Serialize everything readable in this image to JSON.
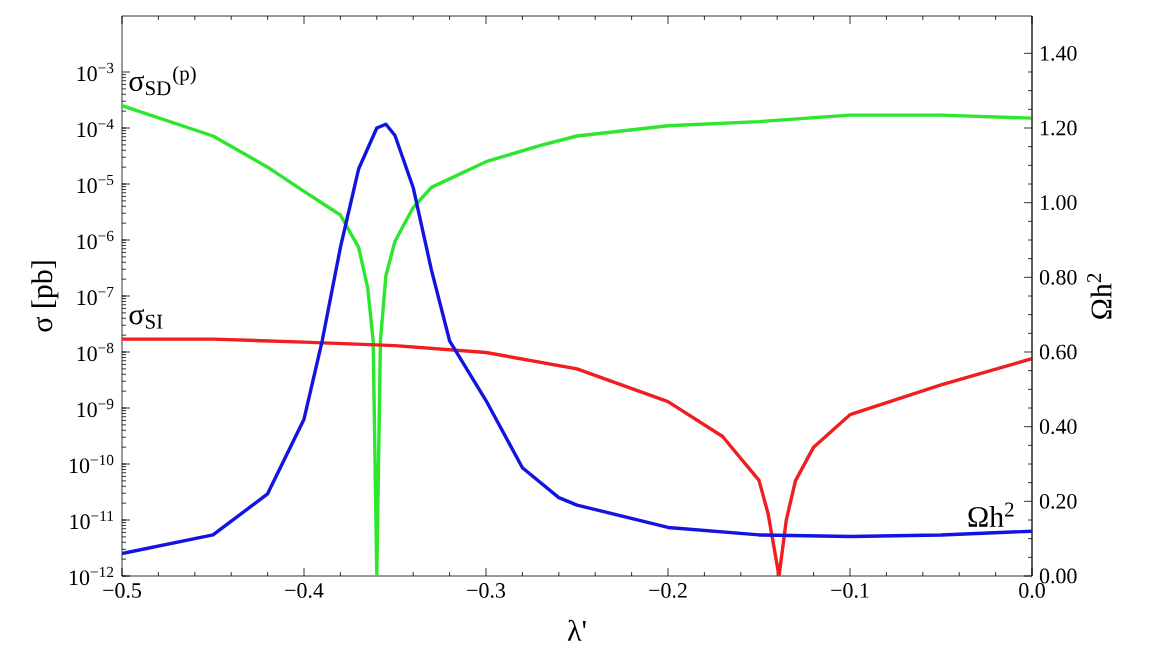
{
  "chart_data": {
    "type": "line",
    "xlabel": "λ'",
    "ylabel": "σ [pb]",
    "y2label": "Ωh$^{2}$",
    "log": "y",
    "xlim": [
      -0.5,
      0
    ],
    "xticks": [
      {
        "value": -0.5,
        "label": "−0.5"
      },
      {
        "value": -0.4,
        "label": "−0.4"
      },
      {
        "value": -0.3,
        "label": "−0.3"
      },
      {
        "value": -0.2,
        "label": "−0.2"
      },
      {
        "value": -0.1,
        "label": "−0.1"
      },
      {
        "value": 0,
        "label": "0.0"
      }
    ],
    "ylim": [
      1e-12,
      0.01
    ],
    "yticks": [
      {
        "value": 1e-12,
        "label": "10$^{−12}$"
      },
      {
        "value": 1e-11,
        "label": "10$^{−11}$"
      },
      {
        "value": 1e-10,
        "label": "10$^{−10}$"
      },
      {
        "value": 1e-09,
        "label": "10$^{−9}$"
      },
      {
        "value": 1e-08,
        "label": "10$^{−8}$"
      },
      {
        "value": 1e-07,
        "label": "10$^{−7}$"
      },
      {
        "value": 1e-06,
        "label": "10$^{−6}$"
      },
      {
        "value": 1e-05,
        "label": "10$^{−5}$"
      },
      {
        "value": 0.0001,
        "label": "10$^{−4}$"
      },
      {
        "value": 0.001,
        "label": "10$^{−3}$"
      }
    ],
    "y2lim": [
      0,
      1.5
    ],
    "y2ticks": [
      {
        "value": 0,
        "label": "0.00"
      },
      {
        "value": 0.2,
        "label": "0.20"
      },
      {
        "value": 0.4,
        "label": "0.40"
      },
      {
        "value": 0.6,
        "label": "0.60"
      },
      {
        "value": 0.8,
        "label": "0.80"
      },
      {
        "value": 1.0,
        "label": "1.00"
      },
      {
        "value": 1.2,
        "label": "1.20"
      },
      {
        "value": 1.4,
        "label": "1.40"
      }
    ],
    "series": [
      {
        "name": "σ$_{SD}$$^{(p)}$",
        "color": "#2ee62e",
        "x": [
          -0.5,
          -0.45,
          -0.42,
          -0.4,
          -0.38,
          -0.37,
          -0.365,
          -0.362,
          -0.36,
          -0.358,
          -0.355,
          -0.35,
          -0.34,
          -0.33,
          -0.3,
          -0.27,
          -0.25,
          -0.2,
          -0.15,
          -0.1,
          -0.05,
          0
        ],
        "values": [
          0.00025,
          7.2e-05,
          2e-05,
          7.4e-06,
          2.8e-06,
          7.4e-07,
          1.4e-07,
          1.6e-08,
          1e-12,
          1.6e-08,
          2.3e-07,
          9.5e-07,
          3.8e-06,
          8.7e-06,
          2.5e-05,
          4.9e-05,
          7.2e-05,
          0.00011,
          0.00013,
          0.00017,
          0.00017,
          0.00015
        ]
      },
      {
        "name": "σ$_{SI}$",
        "color": "#f01e1e",
        "x": [
          -0.5,
          -0.45,
          -0.4,
          -0.35,
          -0.3,
          -0.25,
          -0.2,
          -0.17,
          -0.15,
          -0.145,
          -0.139,
          -0.135,
          -0.13,
          -0.12,
          -0.1,
          -0.05,
          0
        ],
        "values": [
          1.7e-08,
          1.7e-08,
          1.5e-08,
          1.3e-08,
          9.8e-09,
          5e-09,
          1.3e-09,
          3.1e-10,
          5.1e-11,
          1.3e-11,
          1e-12,
          1e-11,
          5e-11,
          2e-10,
          7.6e-10,
          2.6e-09,
          7.6e-09
        ]
      },
      {
        "name": "Ωh$^{2}$",
        "color": "#1414e0",
        "axis": "y2",
        "x": [
          -0.5,
          -0.45,
          -0.42,
          -0.4,
          -0.39,
          -0.38,
          -0.37,
          -0.36,
          -0.355,
          -0.35,
          -0.34,
          -0.33,
          -0.32,
          -0.3,
          -0.28,
          -0.26,
          -0.25,
          -0.2,
          -0.15,
          -0.1,
          -0.05,
          0
        ],
        "values": [
          0.06,
          0.11,
          0.22,
          0.42,
          0.63,
          0.88,
          1.09,
          1.2,
          1.21,
          1.18,
          1.04,
          0.82,
          0.63,
          0.47,
          0.29,
          0.21,
          0.19,
          0.13,
          0.11,
          0.106,
          0.11,
          0.12
        ]
      }
    ]
  }
}
